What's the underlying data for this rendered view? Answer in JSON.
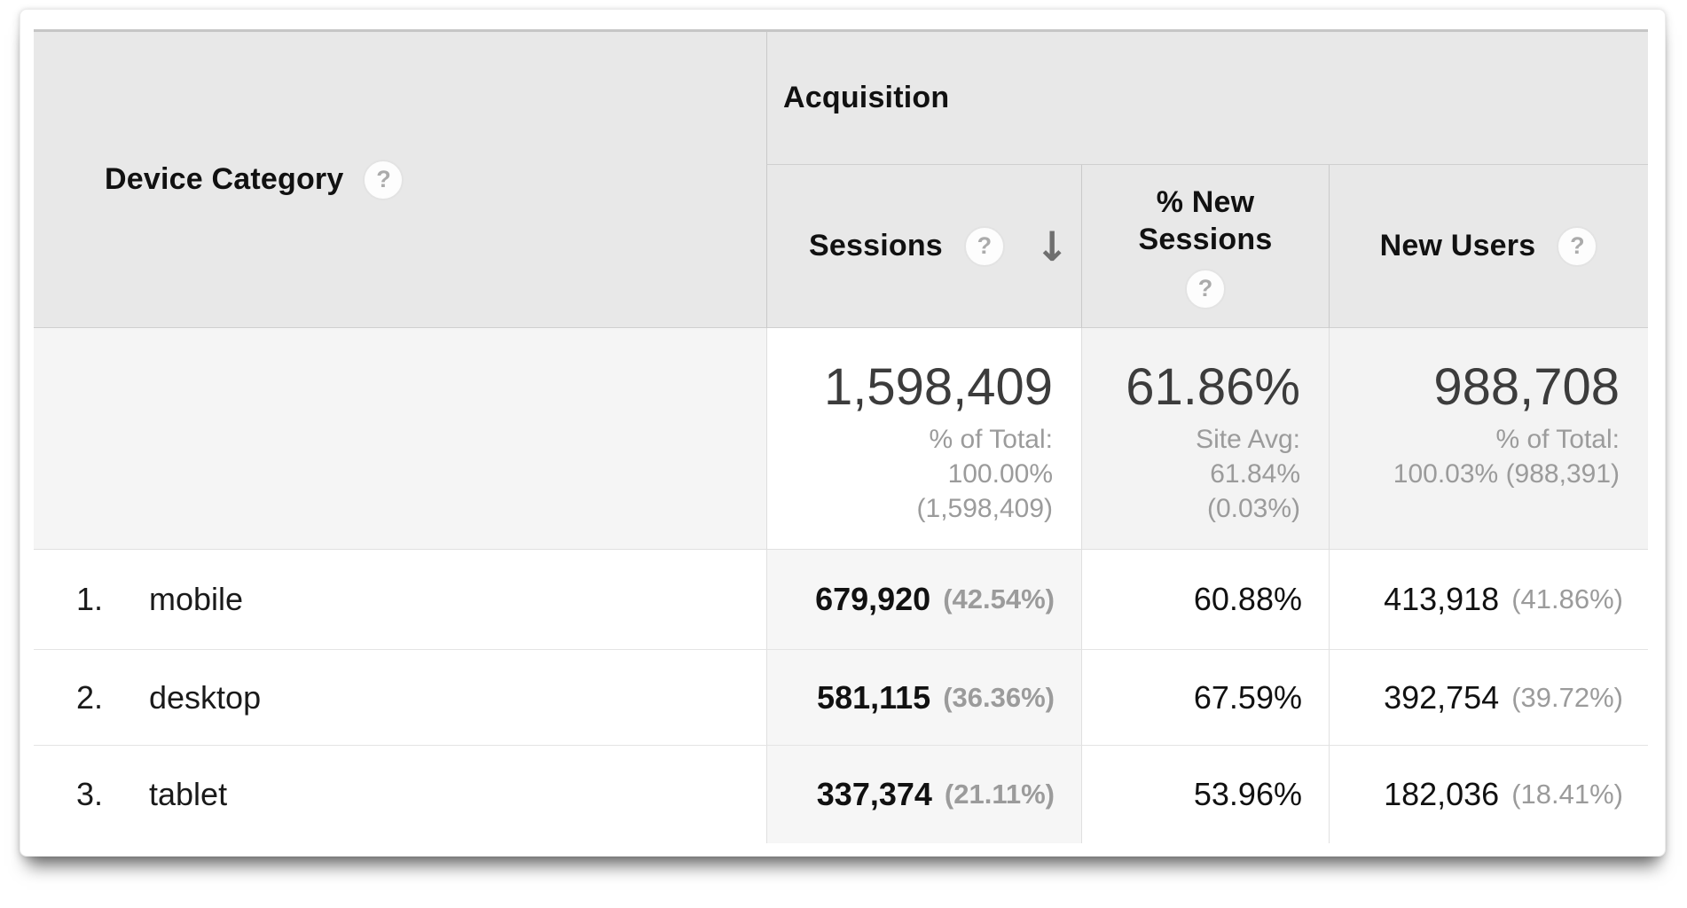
{
  "icons": {
    "help": "?",
    "sort_desc": "↓"
  },
  "colors": {
    "header_bg": "#e8e8e8",
    "sorted_column_bg": "#f6f6f6",
    "summary_row_bg": "#f3f3f3",
    "primary_text": "#1a1a1a",
    "secondary_text": "#9b9b9b",
    "border": "#c9c9c9"
  },
  "table": {
    "dimension_header": "Device Category",
    "group_header": "Acquisition",
    "columns": {
      "sessions": "Sessions",
      "new_sessions": "% New Sessions",
      "new_users": "New Users"
    },
    "summary": {
      "sessions": {
        "value": "1,598,409",
        "line1": "% of Total:",
        "line2": "100.00%",
        "line3": "(1,598,409)"
      },
      "new_sessions": {
        "value": "61.86%",
        "line1": "Site Avg:",
        "line2": "61.84%",
        "line3": "(0.03%)"
      },
      "new_users": {
        "value": "988,708",
        "line1": "% of Total:",
        "line2": "100.03% (988,391)"
      }
    },
    "rows": [
      {
        "rank": "1.",
        "category": "mobile",
        "sessions": "679,920",
        "sessions_share": "(42.54%)",
        "pct_new_sessions": "60.88%",
        "new_users": "413,918",
        "new_users_share": "(41.86%)"
      },
      {
        "rank": "2.",
        "category": "desktop",
        "sessions": "581,115",
        "sessions_share": "(36.36%)",
        "pct_new_sessions": "67.59%",
        "new_users": "392,754",
        "new_users_share": "(39.72%)"
      },
      {
        "rank": "3.",
        "category": "tablet",
        "sessions": "337,374",
        "sessions_share": "(21.11%)",
        "pct_new_sessions": "53.96%",
        "new_users": "182,036",
        "new_users_share": "(18.41%)"
      }
    ]
  }
}
